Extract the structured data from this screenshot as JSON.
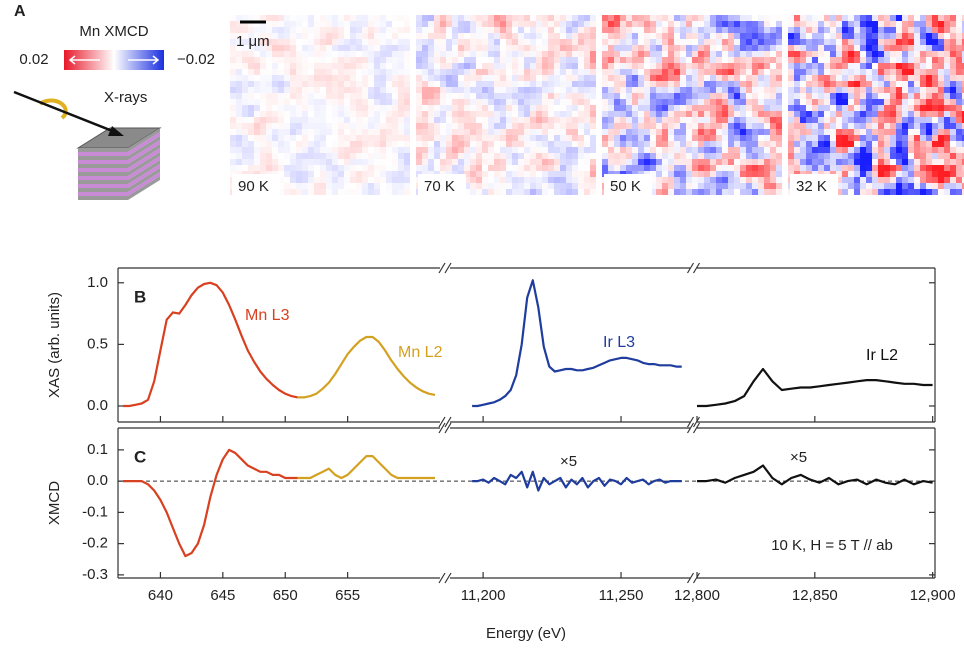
{
  "panel_a": {
    "label": "A",
    "colorbar_title": "Mn XMCD",
    "colorbar_labels": [
      "0.02",
      "−0.02"
    ],
    "schematic_label": "X-rays",
    "scale_bar": "1 μm",
    "images": [
      "90 K",
      "70 K",
      "50 K",
      "32 K"
    ]
  },
  "chart_data": [
    {
      "type": "line",
      "panel_label": "B",
      "ylabel": "XAS (arb. units)",
      "ylim": [
        -0.13,
        1.12
      ],
      "yticks": [
        {
          "value": 0,
          "label": "0.0"
        },
        0.5,
        {
          "value": 1,
          "label": "1.0"
        }
      ],
      "segments": [
        {
          "series": [
            {
              "name": "Mn L3",
              "color": "#d9401f",
              "x": [
                637,
                637.5,
                638,
                638.5,
                639,
                639.5,
                640,
                640.5,
                641,
                641.5,
                642,
                642.5,
                643,
                643.5,
                644,
                644.5,
                645,
                645.5,
                646,
                646.5,
                647,
                647.5,
                648,
                648.5,
                649,
                649.5,
                650,
                650.5,
                651
              ],
              "values": [
                0.0,
                0.0,
                0.01,
                0.02,
                0.05,
                0.2,
                0.45,
                0.7,
                0.76,
                0.75,
                0.82,
                0.9,
                0.96,
                0.99,
                1.0,
                0.98,
                0.92,
                0.82,
                0.7,
                0.57,
                0.45,
                0.36,
                0.28,
                0.22,
                0.17,
                0.13,
                0.1,
                0.08,
                0.07
              ]
            },
            {
              "name": "Mn L2",
              "color": "#d4a020",
              "x": [
                651,
                651.5,
                652,
                652.5,
                653,
                653.5,
                654,
                654.5,
                655,
                655.5,
                656,
                656.5,
                657,
                657.5,
                658,
                658.5,
                659,
                659.5,
                660,
                660.5,
                661,
                661.5,
                662
              ],
              "values": [
                0.07,
                0.07,
                0.08,
                0.1,
                0.14,
                0.19,
                0.26,
                0.34,
                0.42,
                0.48,
                0.53,
                0.56,
                0.56,
                0.52,
                0.45,
                0.37,
                0.3,
                0.24,
                0.19,
                0.15,
                0.12,
                0.1,
                0.09
              ]
            }
          ]
        },
        {
          "series": [
            {
              "name": "Ir L3",
              "color": "#1f3d9e",
              "x": [
                11196,
                11198,
                11200,
                11202,
                11204,
                11206,
                11208,
                11210,
                11212,
                11214,
                11216,
                11218,
                11220,
                11222,
                11224,
                11226,
                11228,
                11230,
                11232,
                11234,
                11236,
                11238,
                11240,
                11242,
                11244,
                11246,
                11248,
                11250,
                11252,
                11254,
                11256,
                11258,
                11260,
                11262,
                11264,
                11266,
                11268,
                11270,
                11272
              ],
              "values": [
                0.0,
                0.0,
                0.01,
                0.02,
                0.03,
                0.05,
                0.08,
                0.13,
                0.25,
                0.5,
                0.88,
                1.02,
                0.8,
                0.48,
                0.32,
                0.28,
                0.29,
                0.3,
                0.3,
                0.29,
                0.29,
                0.3,
                0.31,
                0.33,
                0.35,
                0.37,
                0.38,
                0.39,
                0.39,
                0.38,
                0.37,
                0.35,
                0.34,
                0.34,
                0.33,
                0.33,
                0.33,
                0.32,
                0.32
              ]
            }
          ]
        },
        {
          "series": [
            {
              "name": "Ir L2",
              "color": "#111111",
              "x": [
                12800,
                12804,
                12808,
                12812,
                12816,
                12820,
                12824,
                12828,
                12832,
                12836,
                12840,
                12844,
                12848,
                12852,
                12856,
                12860,
                12864,
                12868,
                12872,
                12876,
                12880,
                12884,
                12888,
                12892,
                12896,
                12900
              ],
              "values": [
                0.0,
                0.0,
                0.01,
                0.02,
                0.04,
                0.08,
                0.2,
                0.3,
                0.2,
                0.13,
                0.14,
                0.15,
                0.15,
                0.16,
                0.17,
                0.18,
                0.19,
                0.2,
                0.21,
                0.21,
                0.2,
                0.19,
                0.18,
                0.18,
                0.17,
                0.17
              ]
            }
          ]
        }
      ]
    },
    {
      "type": "line",
      "panel_label": "C",
      "ylabel": "XMCD",
      "xlabel": "Energy (eV)",
      "condition": "10 K, H = 5 T // ab",
      "ylim": [
        -0.31,
        0.17
      ],
      "yticks": [
        0.1,
        {
          "value": 0,
          "label": "0.0"
        },
        -0.1,
        -0.2,
        -0.3
      ],
      "dashed_zero_line": true,
      "segments": [
        {
          "xlim": [
            636.6,
            662.4
          ],
          "xticks": [
            640,
            645,
            650,
            655
          ],
          "series": [
            {
              "color": "#d9401f",
              "x": [
                637,
                637.5,
                638,
                638.5,
                639,
                639.5,
                640,
                640.5,
                641,
                641.5,
                642,
                642.5,
                643,
                643.5,
                644,
                644.5,
                645,
                645.5,
                646,
                646.5,
                647,
                647.5,
                648,
                648.5,
                649,
                649.5,
                650,
                650.5,
                651
              ],
              "values": [
                0,
                0,
                0,
                0,
                -0.01,
                -0.03,
                -0.06,
                -0.1,
                -0.15,
                -0.2,
                -0.24,
                -0.23,
                -0.2,
                -0.14,
                -0.05,
                0.02,
                0.07,
                0.1,
                0.09,
                0.07,
                0.05,
                0.04,
                0.03,
                0.03,
                0.02,
                0.02,
                0.01,
                0.01,
                0.01
              ]
            },
            {
              "color": "#d4a020",
              "x": [
                651,
                651.5,
                652,
                652.5,
                653,
                653.5,
                654,
                654.5,
                655,
                655.5,
                656,
                656.5,
                657,
                657.5,
                658,
                658.5,
                659,
                659.5,
                660,
                660.5,
                661,
                661.5,
                662
              ],
              "values": [
                0.01,
                0.01,
                0.01,
                0.02,
                0.03,
                0.04,
                0.02,
                0.01,
                0.02,
                0.04,
                0.06,
                0.08,
                0.08,
                0.06,
                0.04,
                0.02,
                0.01,
                0.01,
                0.01,
                0.01,
                0.01,
                0.01,
                0.01
              ]
            }
          ]
        },
        {
          "xlim": [
            11188,
            11275
          ],
          "xticks": [
            {
              "value": 11200,
              "label": "11,200"
            },
            {
              "value": 11250,
              "label": "11,250"
            }
          ],
          "annotation": "×5",
          "series": [
            {
              "color": "#1f3d9e",
              "x": [
                11196,
                11198,
                11200,
                11202,
                11204,
                11206,
                11208,
                11210,
                11212,
                11214,
                11216,
                11218,
                11220,
                11222,
                11224,
                11226,
                11228,
                11230,
                11232,
                11234,
                11236,
                11238,
                11240,
                11242,
                11244,
                11246,
                11248,
                11250,
                11252,
                11254,
                11256,
                11258,
                11260,
                11262,
                11264,
                11266,
                11268,
                11270,
                11272
              ],
              "values": [
                0,
                0,
                0.005,
                -0.005,
                0.01,
                0,
                -0.01,
                0.02,
                0.01,
                0.03,
                -0.02,
                0.03,
                -0.03,
                0.01,
                -0.01,
                0,
                0.01,
                -0.02,
                0.005,
                -0.01,
                0.01,
                -0.02,
                0,
                0.01,
                -0.015,
                0.005,
                0,
                -0.01,
                0.01,
                -0.005,
                0,
                0.005,
                -0.01,
                0,
                0.005,
                -0.005,
                0,
                0,
                0
              ]
            }
          ]
        },
        {
          "xlim": [
            12800,
            12901
          ],
          "xticks": [
            {
              "value": 12800,
              "label": "12,800"
            },
            {
              "value": 12850,
              "label": "12,850"
            },
            {
              "value": 12900,
              "label": "12,900"
            }
          ],
          "annotation": "×5",
          "series": [
            {
              "color": "#111111",
              "x": [
                12800,
                12804,
                12808,
                12812,
                12816,
                12820,
                12824,
                12828,
                12832,
                12836,
                12840,
                12844,
                12848,
                12852,
                12856,
                12860,
                12864,
                12868,
                12872,
                12876,
                12880,
                12884,
                12888,
                12892,
                12896,
                12900
              ],
              "values": [
                0,
                0,
                0.005,
                -0.005,
                0.01,
                0.02,
                0.03,
                0.05,
                0.01,
                -0.01,
                0.01,
                0.02,
                0.005,
                -0.005,
                0.01,
                -0.01,
                0,
                0.005,
                -0.01,
                0.005,
                -0.005,
                -0.01,
                0.005,
                -0.01,
                0,
                -0.005
              ]
            }
          ]
        }
      ]
    }
  ]
}
